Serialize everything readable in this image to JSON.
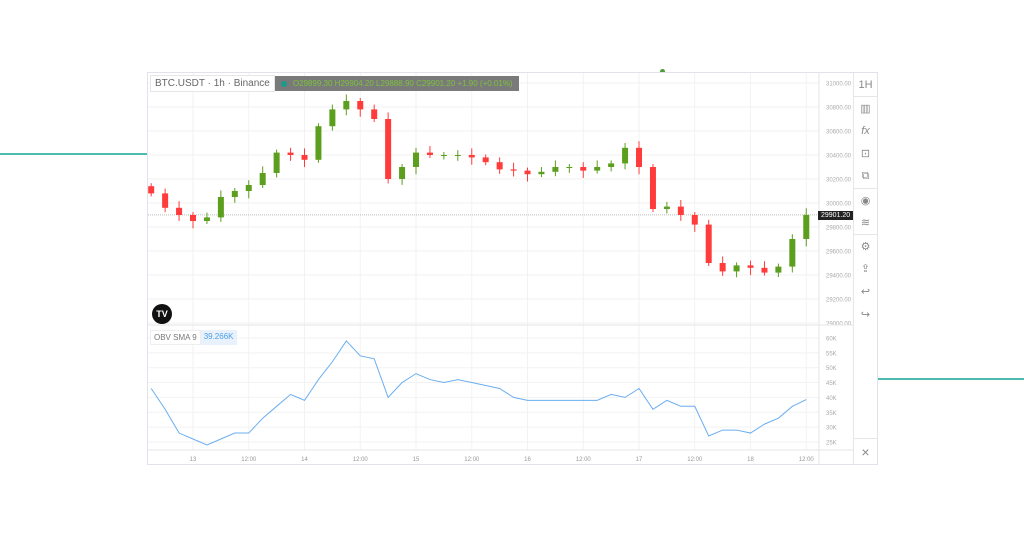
{
  "header": {
    "symbol": "BTC.USDT · 1h · Binance",
    "ohlc": "O29899.30  H29904.20  L29888.90  C29901.20  +1.90 (+0.01%)"
  },
  "last_price": "29901.20",
  "indicator": {
    "name": "OBV SMA 9",
    "value": "39.266K"
  },
  "logo": "TV",
  "toolbar": [
    "1H",
    "candles-icon",
    "fx-icon",
    "fullscreen-icon",
    "compare-icon",
    "eye-icon",
    "layers-icon",
    "gear-icon",
    "share-icon",
    "undo-icon",
    "redo-icon"
  ],
  "toolbar_labels": {
    "interval": "1H",
    "fx": "fx"
  },
  "close_label": "×",
  "colors": {
    "up": "#5c9e1e",
    "down": "#ff3b3b",
    "obv": "#6aaef0",
    "accent": "#4dbcb0"
  },
  "chart_data": [
    {
      "type": "candlestick",
      "x": [
        "12 15:00",
        "12 18:00",
        "12 21:00",
        "13 00:00",
        "13 03:00",
        "13 06:00",
        "13 09:00",
        "13 12:00",
        "13 15:00",
        "13 18:00",
        "13 21:00",
        "14 00:00",
        "14 03:00",
        "14 06:00",
        "14 09:00",
        "14 12:00",
        "14 15:00",
        "14 18:00",
        "14 21:00",
        "15 00:00",
        "15 03:00",
        "15 06:00",
        "15 09:00",
        "15 12:00",
        "15 15:00",
        "15 18:00",
        "15 21:00",
        "16 00:00",
        "16 03:00",
        "16 06:00",
        "16 09:00",
        "16 12:00",
        "16 15:00",
        "16 18:00",
        "16 21:00",
        "17 00:00",
        "17 03:00",
        "17 06:00",
        "17 09:00",
        "17 12:00",
        "17 15:00",
        "17 18:00",
        "17 21:00",
        "18 00:00",
        "18 03:00",
        "18 06:00",
        "18 09:00",
        "18 12:00"
      ],
      "close": [
        30080,
        29960,
        29900,
        29850,
        29880,
        30050,
        30100,
        30150,
        30250,
        30420,
        30400,
        30360,
        30640,
        30780,
        30850,
        30780,
        30700,
        30200,
        30300,
        30420,
        30400,
        30400,
        30400,
        30380,
        30340,
        30280,
        30270,
        30240,
        30260,
        30300,
        30300,
        30270,
        30300,
        30330,
        30460,
        30300,
        29950,
        29970,
        29900,
        29820,
        29500,
        29430,
        29480,
        29460,
        29420,
        29470,
        29700,
        29901.2
      ],
      "yticks": [
        "31000.00",
        "30800.00",
        "30600.00",
        "30400.00",
        "30200.00",
        "30000.00",
        "29800.00",
        "29600.00",
        "29400.00",
        "29200.00",
        "29000.00"
      ],
      "ylim": [
        29000,
        31000
      ]
    },
    {
      "type": "line",
      "name": "OBV SMA 9",
      "x_ref": "same as candlestick x",
      "values": [
        43,
        36,
        28,
        26,
        24,
        26,
        28,
        28,
        33,
        37,
        41,
        39,
        46,
        52,
        59,
        54,
        53,
        40,
        45,
        48,
        46,
        45,
        46,
        45,
        44,
        43,
        40,
        39,
        39,
        39,
        39,
        39,
        39,
        41,
        40,
        43,
        36,
        39,
        37,
        37,
        27,
        29,
        29,
        28,
        31,
        33,
        37,
        39.266
      ],
      "yticks": [
        "60K",
        "55K",
        "50K",
        "45K",
        "40K",
        "35K",
        "30K",
        "25K"
      ],
      "ylim": [
        25,
        60
      ]
    }
  ],
  "xticks": [
    "13",
    "12:00",
    "14",
    "12:00",
    "15",
    "12:00",
    "16",
    "12:00",
    "17",
    "12:00",
    "18",
    "12:00"
  ]
}
